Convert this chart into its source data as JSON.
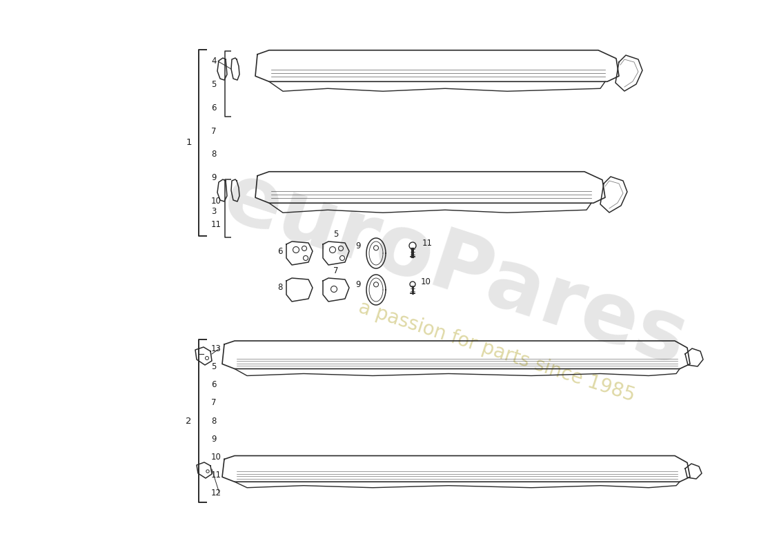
{
  "bg_color": "#ffffff",
  "line_color": "#2a2a2a",
  "text_color": "#1a1a1a",
  "watermark_color1": "#c8c8c8",
  "watermark_color2": "#d4cc88",
  "watermark_alpha1": 0.45,
  "watermark_alpha2": 0.75,
  "fs_label": 8.5,
  "fs_bracket": 9.5,
  "group1_bracket_label": "1",
  "group1_numbers": [
    "4",
    "5",
    "6",
    "7",
    "8",
    "9",
    "10",
    "11"
  ],
  "group1_inner_numbers": [
    "4",
    "5",
    "6"
  ],
  "group1_inner2_numbers": [
    "11",
    "3"
  ],
  "group2_bracket_label": "2",
  "group2_numbers": [
    "13",
    "5",
    "6",
    "7",
    "8",
    "9",
    "10",
    "11",
    "12"
  ],
  "small_labels_row1": [
    "6",
    "5",
    "9",
    "11"
  ],
  "small_labels_row2": [
    "8",
    "7",
    "9",
    "10"
  ]
}
